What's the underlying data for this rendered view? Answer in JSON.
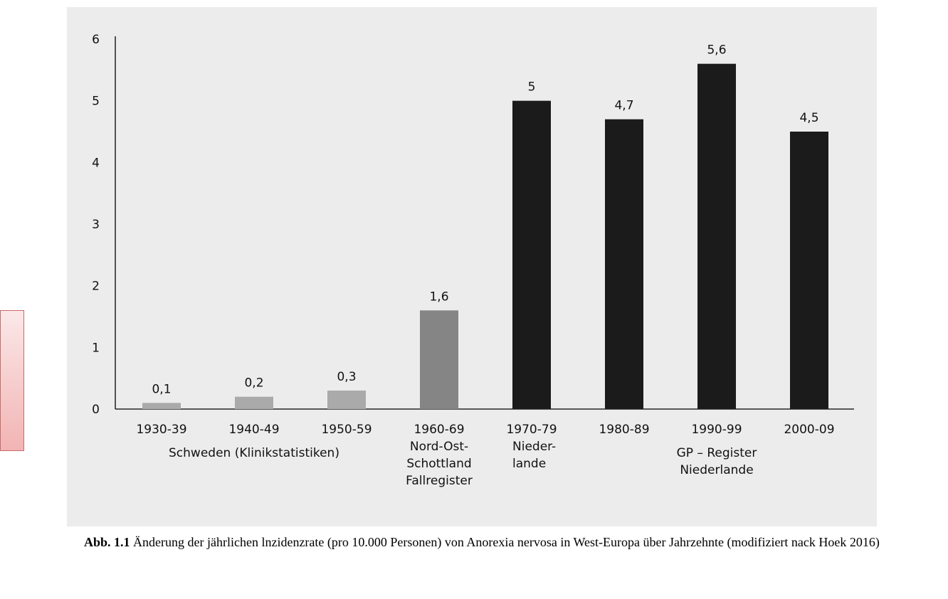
{
  "chart_data": {
    "type": "bar",
    "categories": [
      "1930-39",
      "1940-49",
      "1950-59",
      "1960-69",
      "1970-79",
      "1980-89",
      "1990-99",
      "2000-09"
    ],
    "values": [
      0.1,
      0.2,
      0.3,
      1.6,
      5,
      4.7,
      5.6,
      4.5
    ],
    "value_labels": [
      "0,1",
      "0,2",
      "0,3",
      "1,6",
      "5",
      "4,7",
      "5,6",
      "4,5"
    ],
    "bar_fills": [
      "#aaaaaa",
      "#aaaaaa",
      "#aaaaaa",
      "#858585",
      "#1b1b1b",
      "#1b1b1b",
      "#1b1b1b",
      "#1b1b1b"
    ],
    "ylim": [
      0,
      6
    ],
    "yticks": [
      "0",
      "1",
      "2",
      "3",
      "4",
      "5",
      "6"
    ],
    "grid": false,
    "groups": [
      {
        "lines": [
          "Schweden (Klinikstatistiken)"
        ],
        "from": 0,
        "to": 2
      },
      {
        "lines": [
          "Nord-Ost-",
          "Schottland",
          "Fallregister"
        ],
        "from": 3,
        "to": 3
      },
      {
        "lines": [
          "Nieder-",
          "lande"
        ],
        "from": 4,
        "to": 4
      },
      {
        "lines": [
          "GP – Register",
          "Niederlande"
        ],
        "from": 5,
        "to": 7
      }
    ]
  },
  "caption": {
    "label": "Abb. 1.1",
    "text": " Änderung der jährlichen lnzidenzrate (pro 10.000 Personen) von Anorexia nervosa in West-Europa über Jahrzehnte (modifiziert nack Hoek 2016)"
  }
}
